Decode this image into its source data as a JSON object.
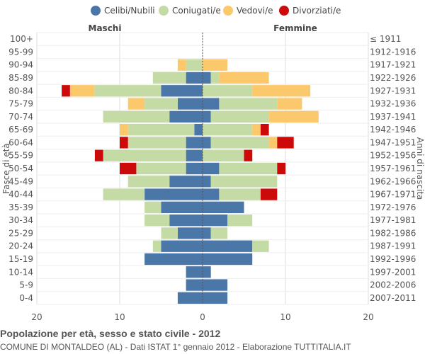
{
  "chart_data": {
    "type": "bar",
    "orientation": "horizontal-population-pyramid",
    "legend": {
      "placement": "top",
      "entries": [
        {
          "name": "Celibi/Nubili",
          "color": "#4a77a7"
        },
        {
          "name": "Coniugati/e",
          "color": "#c5dba6"
        },
        {
          "name": "Vedovi/e",
          "color": "#fbc96b"
        },
        {
          "name": "Divorziati/e",
          "color": "#cc0a0a"
        }
      ]
    },
    "left_label": "Maschi",
    "right_label": "Femmine",
    "ylabel_left": "Fasce di età",
    "ylabel_right": "Anni di nascita",
    "xlim": [
      -20,
      20
    ],
    "xticks": [
      {
        "value": -20,
        "label": "20"
      },
      {
        "value": -10,
        "label": "10"
      },
      {
        "value": 0,
        "label": "0"
      },
      {
        "value": 10,
        "label": "10"
      },
      {
        "value": 20,
        "label": "20"
      }
    ],
    "grid": true,
    "age_groups": [
      "100+",
      "95-99",
      "90-94",
      "85-89",
      "80-84",
      "75-79",
      "70-74",
      "65-69",
      "60-64",
      "55-59",
      "50-54",
      "45-49",
      "40-44",
      "35-39",
      "30-34",
      "25-29",
      "20-24",
      "15-19",
      "10-14",
      "5-9",
      "0-4"
    ],
    "birth_years": [
      "≤ 1911",
      "1912-1916",
      "1917-1921",
      "1922-1926",
      "1927-1931",
      "1932-1936",
      "1937-1941",
      "1942-1946",
      "1947-1951",
      "1952-1956",
      "1957-1961",
      "1962-1966",
      "1967-1971",
      "1972-1976",
      "1977-1981",
      "1982-1986",
      "1987-1991",
      "1992-1996",
      "1997-2001",
      "2002-2006",
      "2007-2011"
    ],
    "males": {
      "celibi": [
        0,
        0,
        0,
        2,
        5,
        3,
        4,
        1,
        2,
        2,
        2,
        4,
        7,
        5,
        4,
        3,
        5,
        7,
        2,
        2,
        3
      ],
      "coniugati": [
        0,
        0,
        2,
        4,
        8,
        4,
        8,
        8,
        7,
        10,
        6,
        5,
        5,
        2,
        3,
        2,
        1,
        0,
        0,
        0,
        0
      ],
      "vedovi": [
        0,
        0,
        1,
        0,
        3,
        2,
        0,
        1,
        0,
        0,
        0,
        0,
        0,
        0,
        0,
        0,
        0,
        0,
        0,
        0,
        0
      ],
      "divorziati": [
        0,
        0,
        0,
        0,
        1,
        0,
        0,
        0,
        1,
        1,
        2,
        0,
        0,
        0,
        0,
        0,
        0,
        0,
        0,
        0,
        0
      ]
    },
    "females": {
      "nubili": [
        0,
        0,
        0,
        1,
        0,
        2,
        1,
        0,
        1,
        0,
        2,
        1,
        2,
        5,
        3,
        1,
        6,
        6,
        1,
        3,
        3
      ],
      "coniugate": [
        0,
        0,
        0,
        1,
        6,
        7,
        7,
        6,
        7,
        5,
        7,
        8,
        5,
        0,
        3,
        2,
        2,
        0,
        0,
        0,
        0
      ],
      "vedove": [
        0,
        0,
        3,
        6,
        7,
        3,
        6,
        1,
        1,
        0,
        0,
        0,
        0,
        0,
        0,
        0,
        0,
        0,
        0,
        0,
        0
      ],
      "divorziate": [
        0,
        0,
        0,
        0,
        0,
        0,
        0,
        1,
        2,
        1,
        1,
        0,
        2,
        0,
        0,
        0,
        0,
        0,
        0,
        0,
        0
      ]
    }
  },
  "footer": {
    "title": "Popolazione per età, sesso e stato civile - 2012",
    "subtitle": "COMUNE DI MONTALDEO (AL) - Dati ISTAT 1° gennaio 2012 - Elaborazione TUTTITALIA.IT"
  }
}
